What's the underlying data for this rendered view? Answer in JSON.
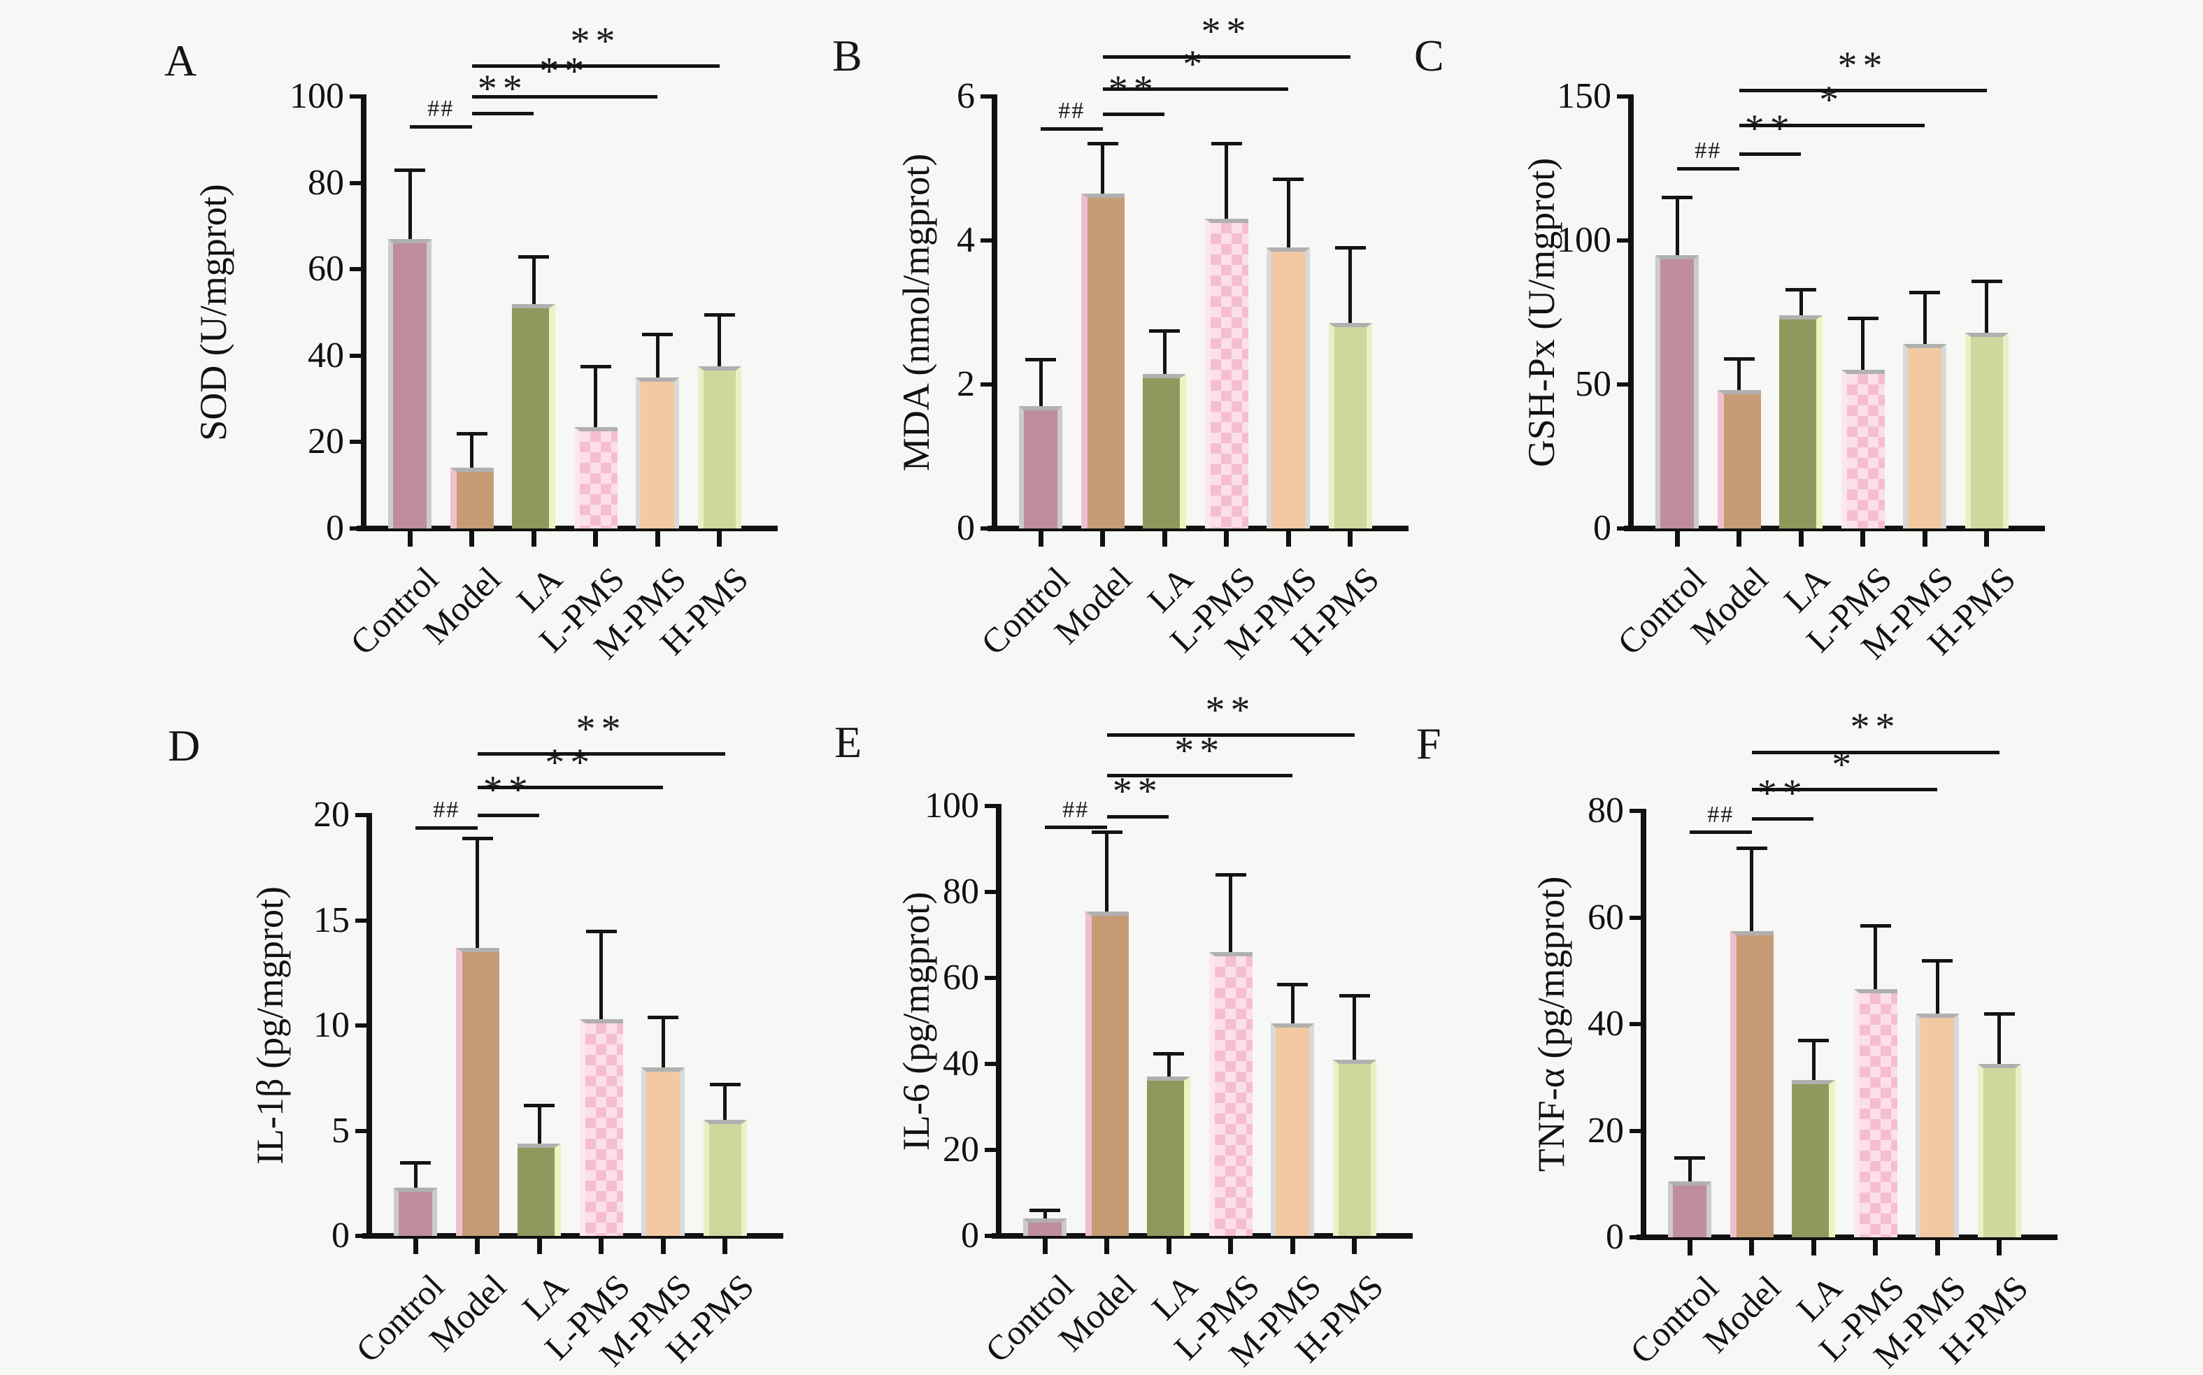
{
  "figure": {
    "background_color": "#f7f7f6",
    "ink_color": "#111111",
    "panel_letters": [
      "A",
      "B",
      "C",
      "D",
      "E",
      "F"
    ]
  },
  "categories": [
    "Control",
    "Model",
    "LA",
    "L-PMS",
    "M-PMS",
    "H-PMS"
  ],
  "group_styles": [
    {
      "name": "Control",
      "fill": "#c08da0",
      "edge": "#cbcbcb",
      "pattern": "solid"
    },
    {
      "name": "Model",
      "fill": "#c59c75",
      "edge": "#efbfd0",
      "pattern": "solid"
    },
    {
      "name": "LA",
      "fill": "#8e995d",
      "edge": "#eef2bd",
      "pattern": "solid"
    },
    {
      "name": "L-PMS",
      "fill": "#f5bed0",
      "edge": "#fcdfe9",
      "pattern": "checker"
    },
    {
      "name": "M-PMS",
      "fill": "#f2c9a2",
      "edge": "#d9d9d9",
      "pattern": "solid"
    },
    {
      "name": "H-PMS",
      "fill": "#cdd89d",
      "edge": "#eaf0c6",
      "pattern": "solid"
    }
  ],
  "chart_data": [
    {
      "panel": "A",
      "type": "bar",
      "ylabel": "SOD (U/mgprot)",
      "categories": [
        "Control",
        "Model",
        "LA",
        "L-PMS",
        "M-PMS",
        "H-PMS"
      ],
      "values": [
        67,
        14,
        52,
        23.5,
        35,
        37.5
      ],
      "errors_plus": [
        16,
        8,
        11,
        14,
        10,
        12
      ],
      "ylim": [
        0,
        100
      ],
      "yticks": [
        0,
        20,
        40,
        60,
        80,
        100
      ],
      "significance": [
        {
          "from": 0,
          "to": 1,
          "label": "##",
          "y": 93
        },
        {
          "from": 1,
          "to": 2,
          "label": "**",
          "y": 96
        },
        {
          "from": 1,
          "to": 4,
          "label": "**",
          "y": 100
        },
        {
          "from": 1,
          "to": 5,
          "label": "**",
          "y": 107
        }
      ]
    },
    {
      "panel": "B",
      "type": "bar",
      "ylabel": "MDA (nmol/mgprot)",
      "categories": [
        "Control",
        "Model",
        "LA",
        "L-PMS",
        "M-PMS",
        "H-PMS"
      ],
      "values": [
        1.7,
        4.65,
        2.15,
        4.3,
        3.9,
        2.85
      ],
      "errors_plus": [
        0.65,
        0.7,
        0.6,
        1.05,
        0.95,
        1.05
      ],
      "ylim": [
        0,
        6
      ],
      "yticks": [
        0,
        2,
        4,
        6
      ],
      "significance": [
        {
          "from": 0,
          "to": 1,
          "label": "##",
          "y": 5.55
        },
        {
          "from": 1,
          "to": 2,
          "label": "**",
          "y": 5.75
        },
        {
          "from": 1,
          "to": 4,
          "label": "*",
          "y": 6.1
        },
        {
          "from": 1,
          "to": 5,
          "label": "**",
          "y": 6.55
        }
      ]
    },
    {
      "panel": "C",
      "type": "bar",
      "ylabel": "GSH-Px (U/mgprot)",
      "categories": [
        "Control",
        "Model",
        "LA",
        "L-PMS",
        "M-PMS",
        "H-PMS"
      ],
      "values": [
        95,
        48,
        74,
        55,
        64,
        68
      ],
      "errors_plus": [
        20,
        11,
        9,
        18,
        18,
        18
      ],
      "ylim": [
        0,
        150
      ],
      "yticks": [
        0,
        50,
        100,
        150
      ],
      "significance": [
        {
          "from": 0,
          "to": 1,
          "label": "##",
          "y": 125
        },
        {
          "from": 1,
          "to": 2,
          "label": "**",
          "y": 130
        },
        {
          "from": 1,
          "to": 4,
          "label": "*",
          "y": 140
        },
        {
          "from": 1,
          "to": 5,
          "label": "**",
          "y": 152
        }
      ]
    },
    {
      "panel": "D",
      "type": "bar",
      "ylabel": "IL-1β (pg/mgprot)",
      "categories": [
        "Control",
        "Model",
        "LA",
        "L-PMS",
        "M-PMS",
        "H-PMS"
      ],
      "values": [
        2.3,
        13.7,
        4.4,
        10.3,
        8.0,
        5.5
      ],
      "errors_plus": [
        1.2,
        5.2,
        1.8,
        4.2,
        2.4,
        1.7
      ],
      "ylim": [
        0,
        20
      ],
      "yticks": [
        0,
        5,
        10,
        15,
        20
      ],
      "significance": [
        {
          "from": 0,
          "to": 1,
          "label": "##",
          "y": 19.4
        },
        {
          "from": 1,
          "to": 2,
          "label": "**",
          "y": 20.0
        },
        {
          "from": 1,
          "to": 4,
          "label": "**",
          "y": 21.3
        },
        {
          "from": 1,
          "to": 5,
          "label": "**",
          "y": 22.9
        }
      ]
    },
    {
      "panel": "E",
      "type": "bar",
      "ylabel": "IL-6 (pg/mgprot)",
      "categories": [
        "Control",
        "Model",
        "LA",
        "L-PMS",
        "M-PMS",
        "H-PMS"
      ],
      "values": [
        4,
        75.5,
        37,
        66,
        49.5,
        41
      ],
      "errors_plus": [
        2,
        18.5,
        5.5,
        18,
        9,
        15
      ],
      "ylim": [
        0,
        100
      ],
      "yticks": [
        0,
        20,
        40,
        60,
        80,
        100
      ],
      "significance": [
        {
          "from": 0,
          "to": 1,
          "label": "##",
          "y": 95
        },
        {
          "from": 1,
          "to": 2,
          "label": "**",
          "y": 97.5
        },
        {
          "from": 1,
          "to": 4,
          "label": "**",
          "y": 107
        },
        {
          "from": 1,
          "to": 5,
          "label": "**",
          "y": 116.5
        }
      ]
    },
    {
      "panel": "F",
      "type": "bar",
      "ylabel": "TNF-α (pg/mgprot)",
      "categories": [
        "Control",
        "Model",
        "LA",
        "L-PMS",
        "M-PMS",
        "H-PMS"
      ],
      "values": [
        10.5,
        57.5,
        29.5,
        46.5,
        42,
        32.5
      ],
      "errors_plus": [
        4.5,
        15.5,
        7.5,
        12,
        10,
        9.5
      ],
      "ylim": [
        0,
        80
      ],
      "yticks": [
        0,
        20,
        40,
        60,
        80
      ],
      "significance": [
        {
          "from": 0,
          "to": 1,
          "label": "##",
          "y": 76
        },
        {
          "from": 1,
          "to": 2,
          "label": "**",
          "y": 78.5
        },
        {
          "from": 1,
          "to": 4,
          "label": "*",
          "y": 84
        },
        {
          "from": 1,
          "to": 5,
          "label": "**",
          "y": 91
        }
      ]
    }
  ]
}
